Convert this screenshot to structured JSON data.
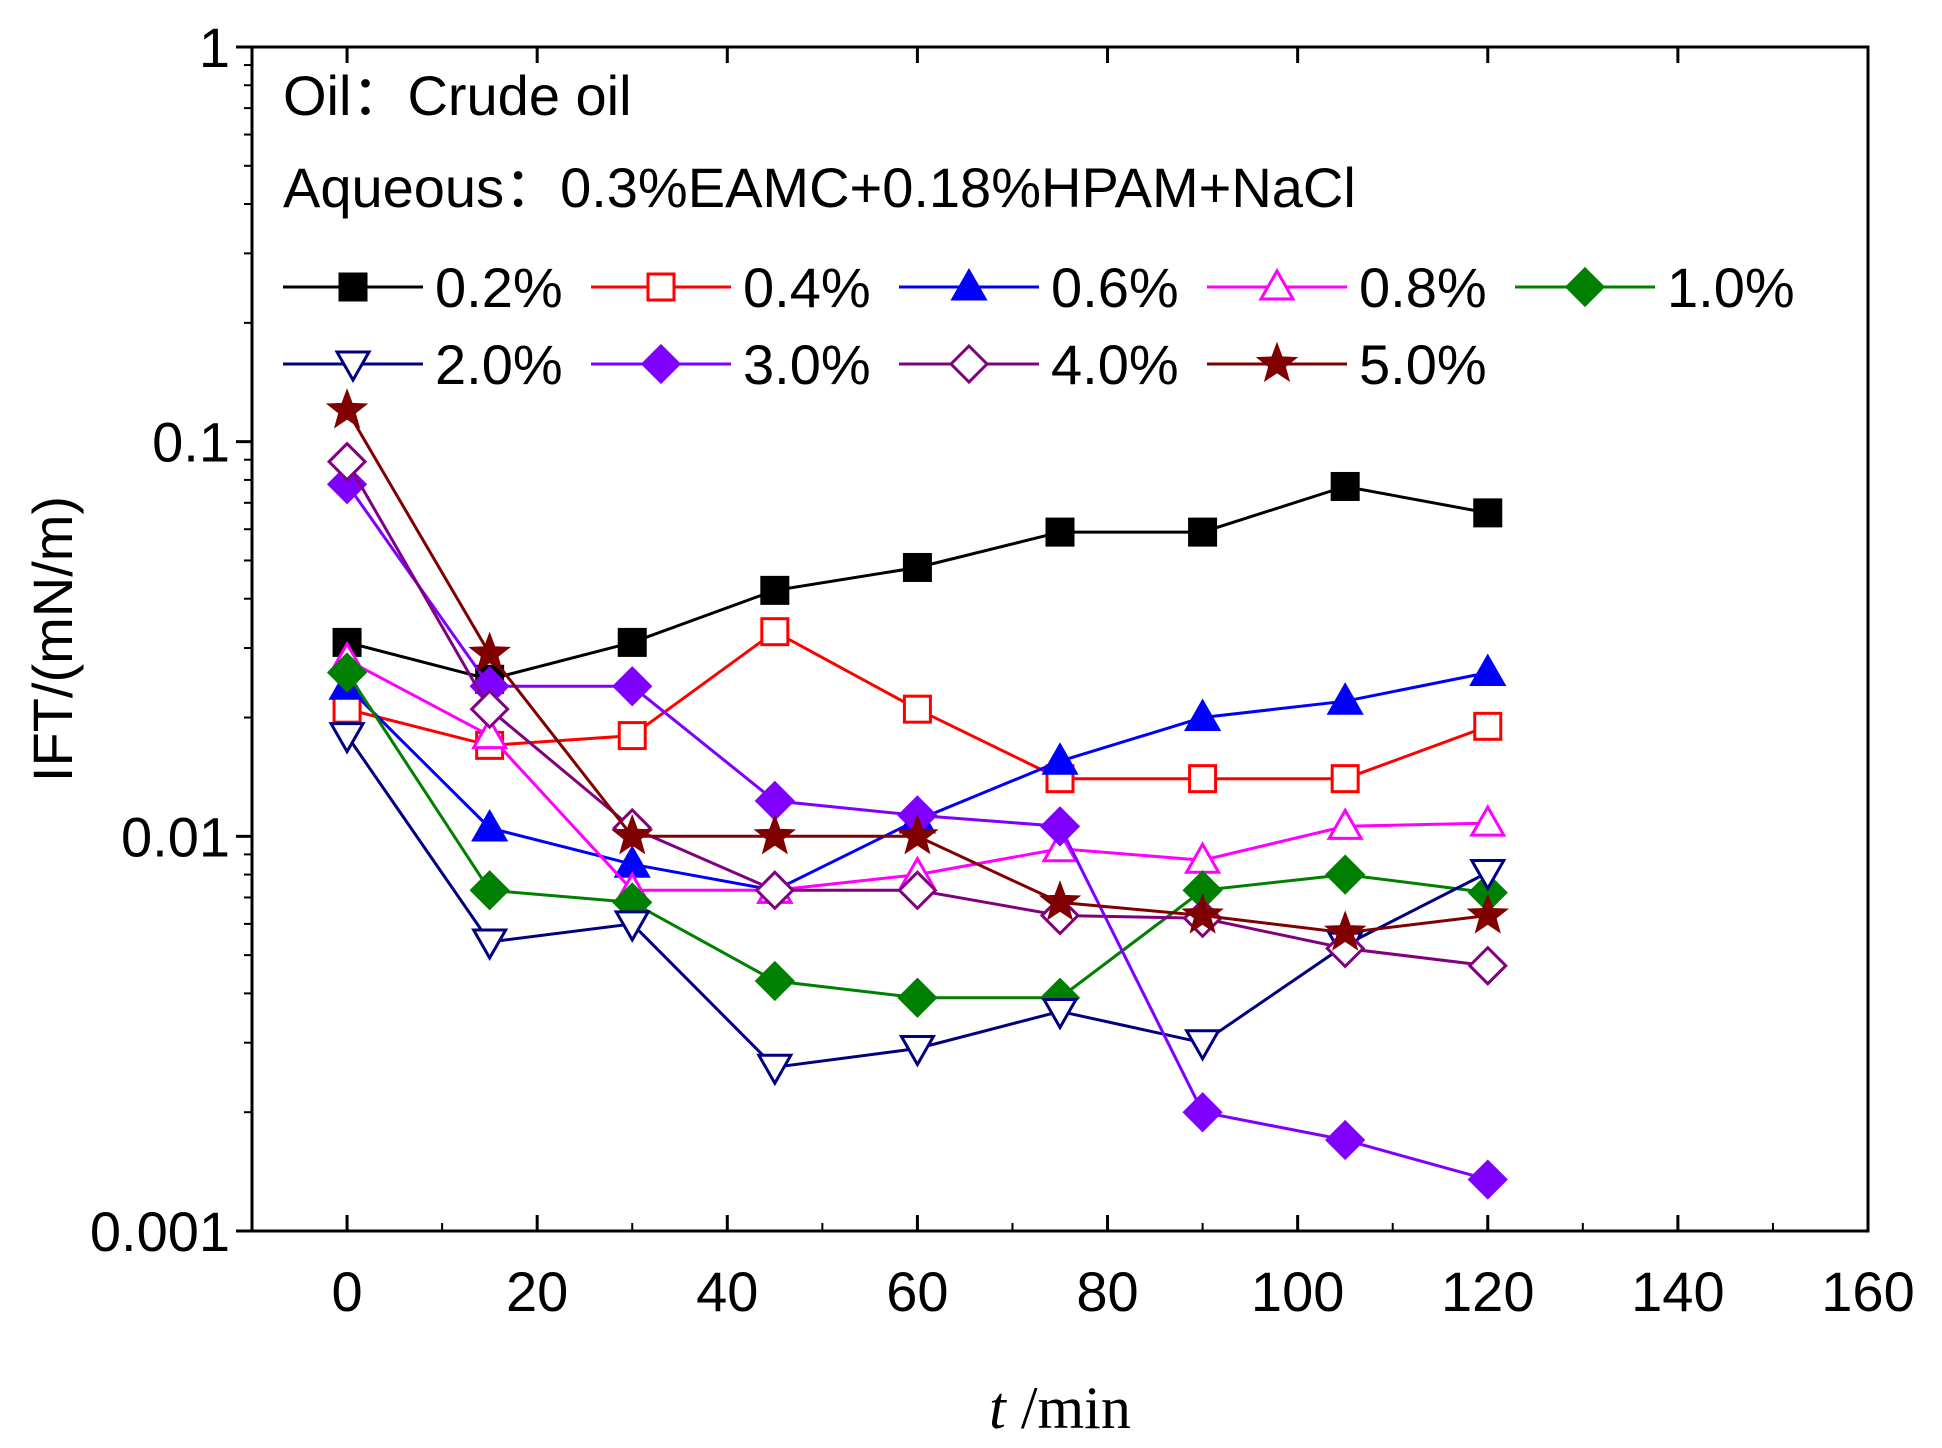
{
  "chart_data": {
    "type": "line",
    "title": "",
    "xlabel": {
      "italic": "t",
      "rest": " /min"
    },
    "ylabel": "IFT/(mN/m)",
    "yscale": "log",
    "xlim": [
      -10,
      160
    ],
    "ylim": [
      0.001,
      1
    ],
    "x_ticks": [
      0,
      20,
      40,
      60,
      80,
      100,
      120,
      140,
      160
    ],
    "y_ticks": [
      {
        "value": 0.001,
        "label": "0.001"
      },
      {
        "value": 0.01,
        "label": "0.01"
      },
      {
        "value": 0.1,
        "label": "0.1"
      },
      {
        "value": 1,
        "label": "1"
      }
    ],
    "annotations": [
      "Oil：Crude oil",
      "Aqueous：0.3%EAMC+0.18%HPAM+NaCl"
    ],
    "legend_placement": "top-left",
    "x": [
      0,
      15,
      30,
      45,
      60,
      75,
      90,
      105,
      120
    ],
    "series": [
      {
        "name": "0.2%",
        "color": "#000000",
        "marker": "square-filled",
        "values": [
          0.031,
          0.025,
          0.031,
          0.042,
          0.048,
          0.059,
          0.059,
          0.077,
          0.066
        ]
      },
      {
        "name": "0.4%",
        "color": "#ff0000",
        "marker": "square-open",
        "values": [
          0.021,
          0.017,
          0.018,
          0.033,
          0.021,
          0.014,
          0.014,
          0.014,
          0.019
        ]
      },
      {
        "name": "0.6%",
        "color": "#0000ff",
        "marker": "triangle-up-filled",
        "values": [
          0.024,
          0.0105,
          0.0085,
          0.0073,
          0.011,
          0.0155,
          0.02,
          0.022,
          0.026
        ]
      },
      {
        "name": "0.8%",
        "color": "#ff00ff",
        "marker": "triangle-up-open",
        "values": [
          0.028,
          0.018,
          0.0073,
          0.0073,
          0.008,
          0.0093,
          0.0087,
          0.0106,
          0.0108
        ]
      },
      {
        "name": "1.0%",
        "color": "#008000",
        "marker": "diamond-filled",
        "values": [
          0.026,
          0.0073,
          0.0068,
          0.0043,
          0.0039,
          0.0039,
          0.0073,
          0.008,
          0.0072
        ]
      },
      {
        "name": "2.0%",
        "color": "#000080",
        "marker": "triangle-down-open",
        "values": [
          0.018,
          0.0054,
          0.006,
          0.0026,
          0.0029,
          0.0036,
          0.003,
          0.0053,
          0.0081
        ]
      },
      {
        "name": "3.0%",
        "color": "#8000ff",
        "marker": "diamond-filled",
        "values": [
          0.078,
          0.024,
          0.024,
          0.0123,
          0.0113,
          0.0106,
          0.002,
          0.0017,
          0.00135
        ]
      },
      {
        "name": "4.0%",
        "color": "#800080",
        "marker": "diamond-open",
        "values": [
          0.089,
          0.021,
          0.0105,
          0.0073,
          0.0073,
          0.0063,
          0.0062,
          0.0052,
          0.0047
        ]
      },
      {
        "name": "5.0%",
        "color": "#800000",
        "marker": "star-filled",
        "values": [
          0.12,
          0.029,
          0.01,
          0.01,
          0.01,
          0.0068,
          0.0063,
          0.0057,
          0.0063
        ]
      }
    ]
  }
}
